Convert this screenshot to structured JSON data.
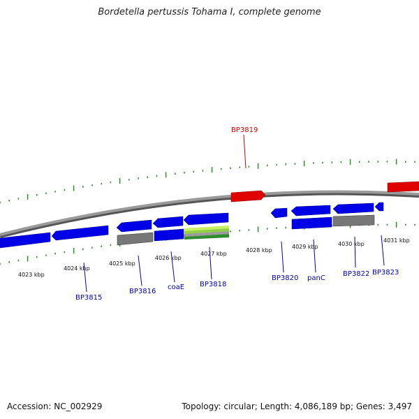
{
  "title": "Bordetella pertussis Tohama I, complete genome",
  "accession": "Accession: NC_002929",
  "summary": "Topology: circular; Length: 4,086,189 bp; Genes: 3,497",
  "colors": {
    "forward_strand_gene": "#e00000",
    "reverse_strand_gene": "#0000e6",
    "pseudo_gene": "#777777",
    "rna_gene": "#7ec850",
    "backbone": "#8a8a8a",
    "ticks": "#2e8b2e",
    "label_blue": "#0000aa",
    "label_red": "#cc0000"
  },
  "kbp_ticks": [
    "4023 kbp",
    "4024 kbp",
    "4025 kbp",
    "4026 kbp",
    "4027 kbp",
    "4028 kbp",
    "4029 kbp",
    "4030 kbp",
    "4031 kbp"
  ],
  "gene_labels": [
    {
      "text": "BP3819",
      "strand": "forward"
    },
    {
      "text": "BP3815",
      "strand": "reverse"
    },
    {
      "text": "BP3816",
      "strand": "reverse"
    },
    {
      "text": "coaE",
      "strand": "reverse"
    },
    {
      "text": "BP3818",
      "strand": "reverse"
    },
    {
      "text": "BP3820",
      "strand": "reverse"
    },
    {
      "text": "panC",
      "strand": "reverse"
    },
    {
      "text": "BP3822",
      "strand": "reverse"
    },
    {
      "text": "BP3823",
      "strand": "reverse"
    }
  ]
}
